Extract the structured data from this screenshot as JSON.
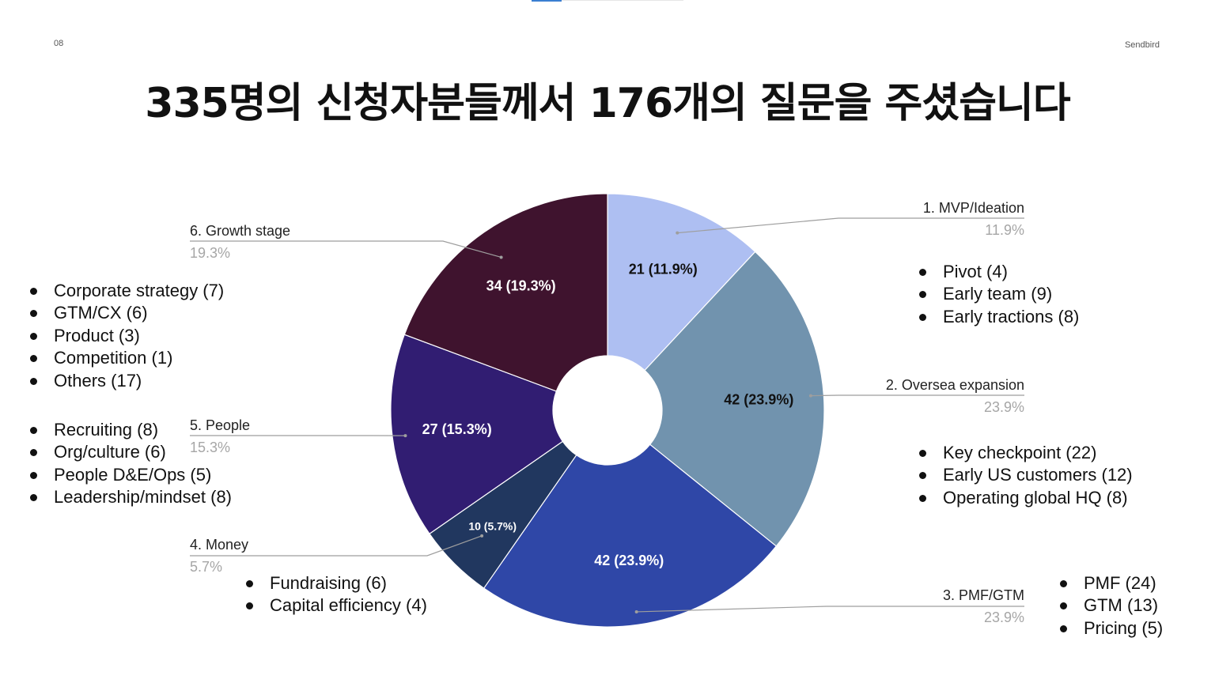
{
  "slide": {
    "page_number": "08",
    "brand": "Sendbird",
    "title": "335명의 신청자분들께서 176개의 질문을 주셨습니다"
  },
  "chart_data": {
    "type": "pie",
    "donut": true,
    "total": 176,
    "slices": [
      {
        "label": "1. MVP/Ideation",
        "value": 21,
        "percent": "11.9%",
        "data_label": "21 (11.9%)",
        "color": "#aebff2",
        "label_color": "#111111"
      },
      {
        "label": "2. Oversea expansion",
        "value": 42,
        "percent": "23.9%",
        "data_label": "42 (23.9%)",
        "color": "#7193ae",
        "label_color": "#111111"
      },
      {
        "label": "3. PMF/GTM",
        "value": 42,
        "percent": "23.9%",
        "data_label": "42 (23.9%)",
        "color": "#2f47a7",
        "label_color": "#ffffff"
      },
      {
        "label": "4. Money",
        "value": 10,
        "percent": "5.7%",
        "data_label": "10 (5.7%)",
        "color": "#21375f",
        "label_color": "#ffffff"
      },
      {
        "label": "5. People",
        "value": 27,
        "percent": "15.3%",
        "data_label": "27 (15.3%)",
        "color": "#311d72",
        "label_color": "#ffffff"
      },
      {
        "label": "6. Growth stage",
        "value": 34,
        "percent": "19.3%",
        "data_label": "34 (19.3%)",
        "color": "#3f132e",
        "label_color": "#ffffff"
      }
    ]
  },
  "bullets": {
    "mvp": [
      "Pivot (4)",
      "Early team (9)",
      "Early tractions (8)"
    ],
    "oversea": [
      "Key checkpoint (22)",
      "Early US customers (12)",
      "Operating global HQ (8)"
    ],
    "pmf": [
      "PMF (24)",
      "GTM (13)",
      "Pricing (5)"
    ],
    "money": [
      "Fundraising (6)",
      "Capital efficiency (4)"
    ],
    "people": [
      "Recruiting (8)",
      "Org/culture (6)",
      "People D&E/Ops (5)",
      "Leadership/mindset (8)"
    ],
    "growth": [
      "Corporate strategy (7)",
      "GTM/CX (6)",
      "Product (3)",
      "Competition (1)",
      "Others (17)"
    ]
  }
}
